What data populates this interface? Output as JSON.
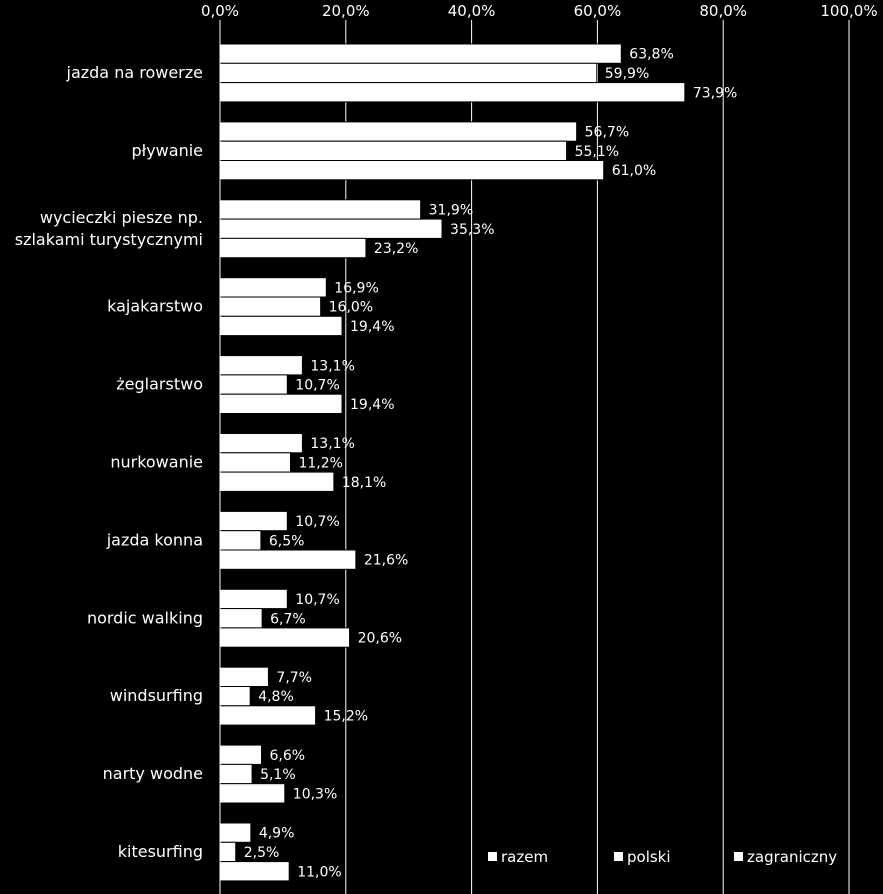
{
  "chart_data": {
    "type": "bar",
    "orientation": "horizontal",
    "categories": [
      [
        "jazda na rowerze"
      ],
      [
        "pływanie"
      ],
      [
        "wycieczki piesze np.",
        "szlakami turystycznymi"
      ],
      [
        "kajakarstwo"
      ],
      [
        "żeglarstwo"
      ],
      [
        "nurkowanie"
      ],
      [
        "jazda konna"
      ],
      [
        "nordic walking"
      ],
      [
        "windsurfing"
      ],
      [
        "narty wodne"
      ],
      [
        "kitesurfing"
      ]
    ],
    "series": [
      {
        "name": "razem",
        "values": [
          63.8,
          56.7,
          31.9,
          16.9,
          13.1,
          13.1,
          10.7,
          10.7,
          7.7,
          6.6,
          4.9
        ],
        "labels": [
          "63,8%",
          "56,7%",
          "31,9%",
          "16,9%",
          "13,1%",
          "13,1%",
          "10,7%",
          "10,7%",
          "7,7%",
          "6,6%",
          "4,9%"
        ]
      },
      {
        "name": "polski",
        "values": [
          59.9,
          55.1,
          35.3,
          16.0,
          10.7,
          11.2,
          6.5,
          6.7,
          4.8,
          5.1,
          2.5
        ],
        "labels": [
          "59,9%",
          "55,1%",
          "35,3%",
          "16,0%",
          "10,7%",
          "11,2%",
          "6,5%",
          "6,7%",
          "4,8%",
          "5,1%",
          "2,5%"
        ]
      },
      {
        "name": "zagraniczny",
        "values": [
          73.9,
          61.0,
          23.2,
          19.4,
          19.4,
          18.1,
          21.6,
          20.6,
          15.2,
          10.3,
          11.0
        ],
        "labels": [
          "73,9%",
          "61,0%",
          "23,2%",
          "19,4%",
          "19,4%",
          "18,1%",
          "21,6%",
          "20,6%",
          "15,2%",
          "10,3%",
          "11,0%"
        ]
      }
    ],
    "xlim": [
      0,
      100
    ],
    "xticks": [
      0,
      20,
      40,
      60,
      80,
      100
    ],
    "xtick_labels": [
      "0,0%",
      "20,0%",
      "40,0%",
      "60,0%",
      "80,0%",
      "100,0%"
    ],
    "grid": true,
    "legend_position": "bottom-right",
    "colors": {
      "background": "#000000",
      "bar_fill": "#ffffff",
      "bar_stroke": "#000000",
      "text": "#ffffff",
      "grid": "#ffffff"
    }
  }
}
